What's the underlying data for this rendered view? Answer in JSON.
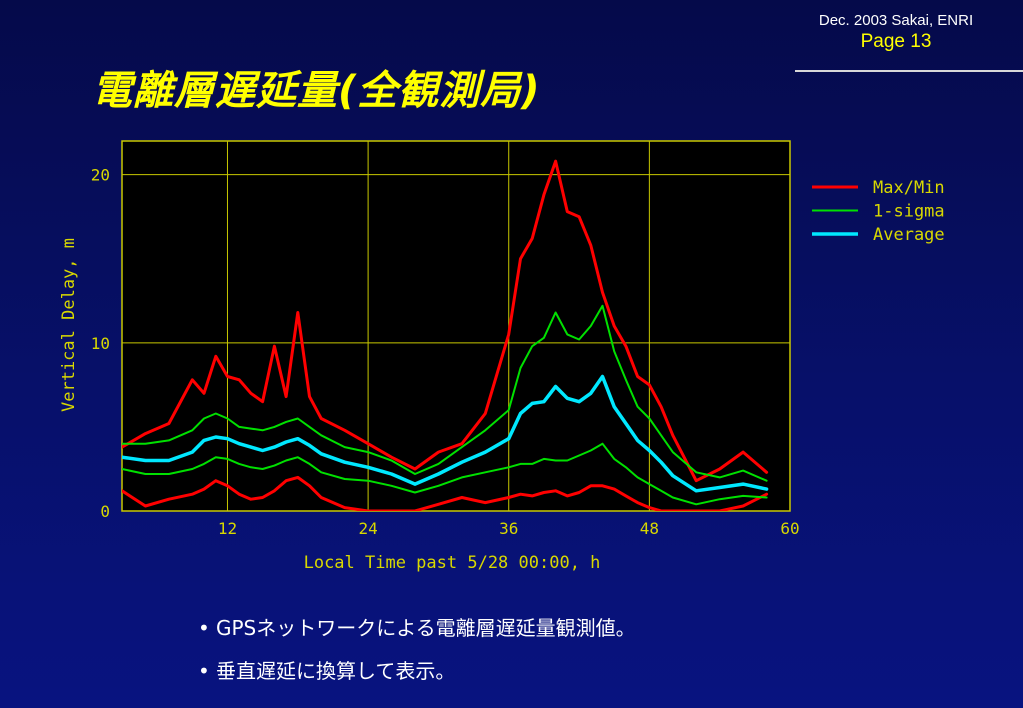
{
  "header": {
    "line1": "Dec. 2003 Sakai, ENRI",
    "line2": "Page 13"
  },
  "title": "電離層遅延量(全観測局)",
  "bullets": [
    "GPSネットワークによる電離層遅延量観測値。",
    "垂直遅延に換算して表示。"
  ],
  "colors": {
    "max_min": "#ff0000",
    "sigma": "#00e000",
    "average": "#00e8ff",
    "axis": "#c8c800",
    "text": "#d8d800"
  },
  "chart_data": {
    "type": "line",
    "title": "",
    "xlabel": "Local Time past 5/28 00:00, h",
    "ylabel": "Vertical Delay, m",
    "xlim": [
      3,
      60
    ],
    "ylim": [
      0,
      22
    ],
    "xticks": [
      12,
      24,
      36,
      48,
      60
    ],
    "yticks": [
      0,
      10,
      20
    ],
    "grid": true,
    "legend_position": "right",
    "x": [
      3,
      5,
      7,
      9,
      10,
      11,
      12,
      13,
      14,
      15,
      16,
      17,
      18,
      19,
      20,
      22,
      24,
      26,
      28,
      30,
      32,
      34,
      36,
      37,
      38,
      39,
      40,
      41,
      42,
      43,
      44,
      45,
      46,
      47,
      48,
      49,
      50,
      52,
      54,
      56,
      58
    ],
    "series": [
      {
        "name": "Max/Min",
        "legend": "Max/Min",
        "color": "#ff0000",
        "width": 3,
        "values": [
          3.8,
          4.6,
          5.2,
          7.8,
          7.0,
          9.2,
          8.0,
          7.8,
          7.0,
          6.5,
          9.8,
          6.8,
          11.8,
          6.8,
          5.5,
          4.8,
          4.0,
          3.2,
          2.5,
          3.5,
          4.0,
          5.8,
          10.5,
          15.0,
          16.2,
          18.8,
          20.8,
          17.8,
          17.5,
          15.8,
          13.0,
          11.0,
          9.8,
          8.0,
          7.5,
          6.2,
          4.5,
          1.8,
          2.5,
          3.5,
          2.3
        ]
      },
      {
        "name": "Max/Min (min)",
        "legend": "",
        "color": "#ff0000",
        "width": 3,
        "values": [
          1.2,
          0.3,
          0.7,
          1.0,
          1.3,
          1.8,
          1.5,
          1.0,
          0.7,
          0.8,
          1.2,
          1.8,
          2.0,
          1.5,
          0.8,
          0.2,
          0.0,
          0.0,
          0.0,
          0.4,
          0.8,
          0.5,
          0.8,
          1.0,
          0.9,
          1.1,
          1.2,
          0.9,
          1.1,
          1.5,
          1.5,
          1.3,
          0.9,
          0.5,
          0.2,
          0.0,
          0.0,
          0.0,
          0.0,
          0.3,
          1.0
        ]
      },
      {
        "name": "1-sigma",
        "legend": "1-sigma",
        "color": "#00e000",
        "width": 2,
        "values": [
          4.0,
          4.0,
          4.2,
          4.8,
          5.5,
          5.8,
          5.5,
          5.0,
          4.9,
          4.8,
          5.0,
          5.3,
          5.5,
          5.0,
          4.5,
          3.8,
          3.5,
          3.0,
          2.2,
          2.8,
          3.8,
          4.8,
          6.0,
          8.5,
          9.8,
          10.3,
          11.8,
          10.5,
          10.2,
          11.0,
          12.2,
          9.5,
          7.8,
          6.2,
          5.5,
          4.5,
          3.5,
          2.3,
          2.0,
          2.4,
          1.8
        ]
      },
      {
        "name": "1-sigma (lower)",
        "legend": "",
        "color": "#00e000",
        "width": 2,
        "values": [
          2.5,
          2.2,
          2.2,
          2.5,
          2.8,
          3.2,
          3.1,
          2.8,
          2.6,
          2.5,
          2.7,
          3.0,
          3.2,
          2.8,
          2.3,
          1.9,
          1.8,
          1.5,
          1.1,
          1.5,
          2.0,
          2.3,
          2.6,
          2.8,
          2.8,
          3.1,
          3.0,
          3.0,
          3.3,
          3.6,
          4.0,
          3.1,
          2.6,
          2.0,
          1.6,
          1.2,
          0.8,
          0.4,
          0.7,
          0.9,
          0.8
        ]
      },
      {
        "name": "Average",
        "legend": "Average",
        "color": "#00e8ff",
        "width": 3.5,
        "values": [
          3.2,
          3.0,
          3.0,
          3.5,
          4.2,
          4.4,
          4.3,
          4.0,
          3.8,
          3.6,
          3.8,
          4.1,
          4.3,
          3.9,
          3.4,
          2.9,
          2.6,
          2.2,
          1.6,
          2.2,
          2.9,
          3.5,
          4.3,
          5.8,
          6.4,
          6.5,
          7.4,
          6.7,
          6.5,
          7.0,
          8.0,
          6.2,
          5.2,
          4.2,
          3.6,
          2.9,
          2.1,
          1.2,
          1.4,
          1.6,
          1.3
        ]
      }
    ]
  }
}
